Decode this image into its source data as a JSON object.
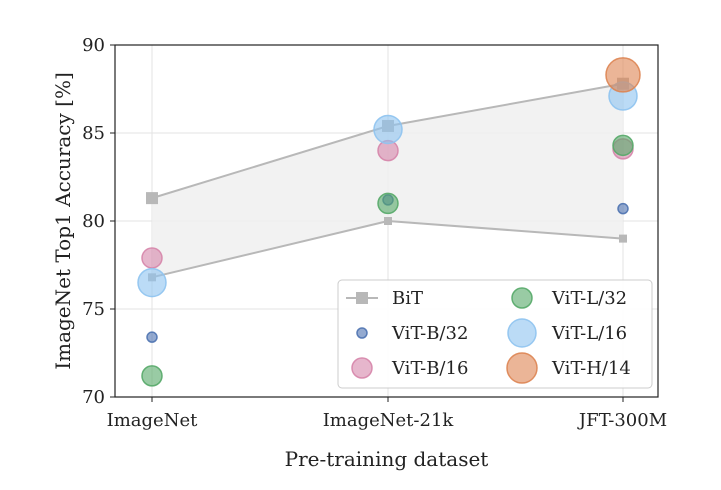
{
  "chart_data": {
    "type": "scatter",
    "title": "",
    "xlabel": "Pre-training dataset",
    "ylabel": "ImageNet Top1 Accuracy [%]",
    "categories": [
      "ImageNet",
      "ImageNet-21k",
      "JFT-300M"
    ],
    "ylim": [
      70,
      90
    ],
    "yticks": [
      70,
      75,
      80,
      85,
      90
    ],
    "grid": true,
    "legend_position": "bottom-right",
    "bit_band": {
      "name": "BiT",
      "upper": [
        81.3,
        85.4,
        87.8
      ],
      "lower": [
        76.8,
        80.0,
        79.0
      ]
    },
    "series": [
      {
        "name": "ViT-B/32",
        "color": "#4c72b0",
        "size": "small",
        "values": [
          73.4,
          81.2,
          80.7
        ]
      },
      {
        "name": "ViT-B/16",
        "color": "#d685aa",
        "size": "medium",
        "values": [
          77.9,
          84.0,
          84.1
        ]
      },
      {
        "name": "ViT-L/32",
        "color": "#55a868",
        "size": "medium",
        "values": [
          71.2,
          81.0,
          84.3
        ]
      },
      {
        "name": "ViT-L/16",
        "color": "#8ec3f0",
        "size": "large",
        "values": [
          76.5,
          85.2,
          87.1
        ]
      },
      {
        "name": "ViT-H/14",
        "color": "#dd8452",
        "size": "xlarge",
        "values": [
          null,
          null,
          88.3
        ]
      }
    ],
    "legend": [
      "BiT",
      "ViT-L/32",
      "ViT-B/32",
      "ViT-L/16",
      "ViT-B/16",
      "ViT-H/14"
    ]
  }
}
